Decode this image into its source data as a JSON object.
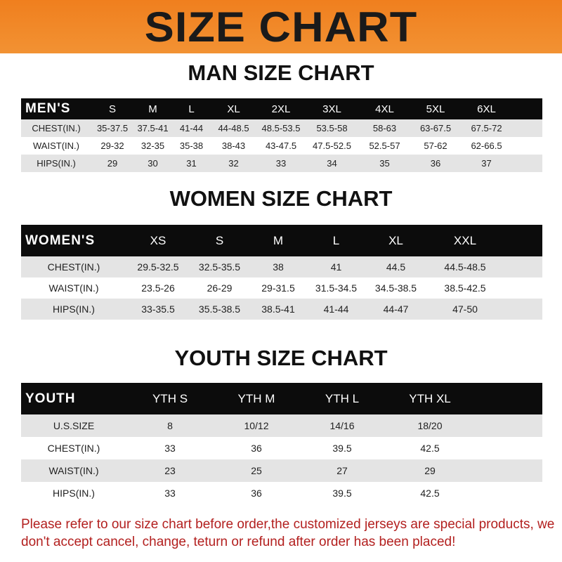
{
  "banner": "SIZE CHART",
  "men": {
    "title": "MAN SIZE CHART",
    "header": [
      "MEN'S",
      "S",
      "M",
      "L",
      "XL",
      "2XL",
      "3XL",
      "4XL",
      "5XL",
      "6XL"
    ],
    "rows": [
      [
        "CHEST(IN.)",
        "35-37.5",
        "37.5-41",
        "41-44",
        "44-48.5",
        "48.5-53.5",
        "53.5-58",
        "58-63",
        "63-67.5",
        "67.5-72"
      ],
      [
        "WAIST(IN.)",
        "29-32",
        "32-35",
        "35-38",
        "38-43",
        "43-47.5",
        "47.5-52.5",
        "52.5-57",
        "57-62",
        "62-66.5"
      ],
      [
        "HIPS(IN.)",
        "29",
        "30",
        "31",
        "32",
        "33",
        "34",
        "35",
        "36",
        "37"
      ]
    ]
  },
  "women": {
    "title": "WOMEN SIZE CHART",
    "header": [
      "WOMEN'S",
      "XS",
      "S",
      "M",
      "L",
      "XL",
      "XXL"
    ],
    "rows": [
      [
        "CHEST(IN.)",
        "29.5-32.5",
        "32.5-35.5",
        "38",
        "41",
        "44.5",
        "44.5-48.5"
      ],
      [
        "WAIST(IN.)",
        "23.5-26",
        "26-29",
        "29-31.5",
        "31.5-34.5",
        "34.5-38.5",
        "38.5-42.5"
      ],
      [
        "HIPS(IN.)",
        "33-35.5",
        "35.5-38.5",
        "38.5-41",
        "41-44",
        "44-47",
        "47-50"
      ]
    ]
  },
  "youth": {
    "title": "YOUTH SIZE CHART",
    "header": [
      "YOUTH",
      "YTH S",
      "YTH M",
      "YTH L",
      "YTH XL"
    ],
    "rows": [
      [
        "U.S.SIZE",
        "8",
        "10/12",
        "14/16",
        "18/20"
      ],
      [
        "CHEST(IN.)",
        "33",
        "36",
        "39.5",
        "42.5"
      ],
      [
        "WAIST(IN.)",
        "23",
        "25",
        "27",
        "29"
      ],
      [
        "HIPS(IN.)",
        "33",
        "36",
        "39.5",
        "42.5"
      ]
    ]
  },
  "note": "Please refer to our size chart before order,the customized jerseys are special products, we don't accept cancel, change, teturn or refund after order has been placed!"
}
